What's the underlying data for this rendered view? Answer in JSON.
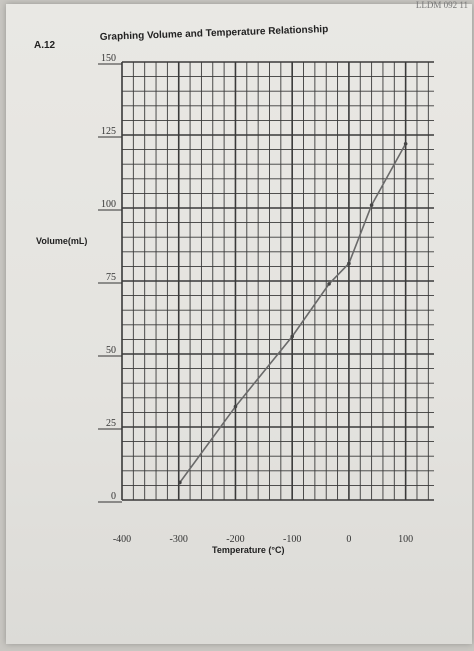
{
  "page": {
    "corner_text": "LLDM 092 11",
    "problem_label": "A.12"
  },
  "chart_data": {
    "type": "line",
    "title": "Graphing Volume and Temperature Relationship",
    "xlabel": "Temperature (°C)",
    "ylabel": "Volume(mL)",
    "xlim": [
      -400,
      150
    ],
    "ylim": [
      0,
      150
    ],
    "x_ticks": [
      -400,
      -300,
      -200,
      -100,
      0,
      100
    ],
    "y_ticks": [
      0,
      25,
      50,
      75,
      100,
      125,
      150
    ],
    "grid": true,
    "series": [
      {
        "x": [
          -298,
          -200,
          -100,
          -35,
          0,
          40,
          100
        ],
        "y": [
          6,
          32,
          56,
          74,
          81,
          101,
          122
        ]
      }
    ],
    "colors": {
      "line": "#6a6a6a",
      "grid": "#3a3a3a",
      "point": "#444444"
    }
  }
}
